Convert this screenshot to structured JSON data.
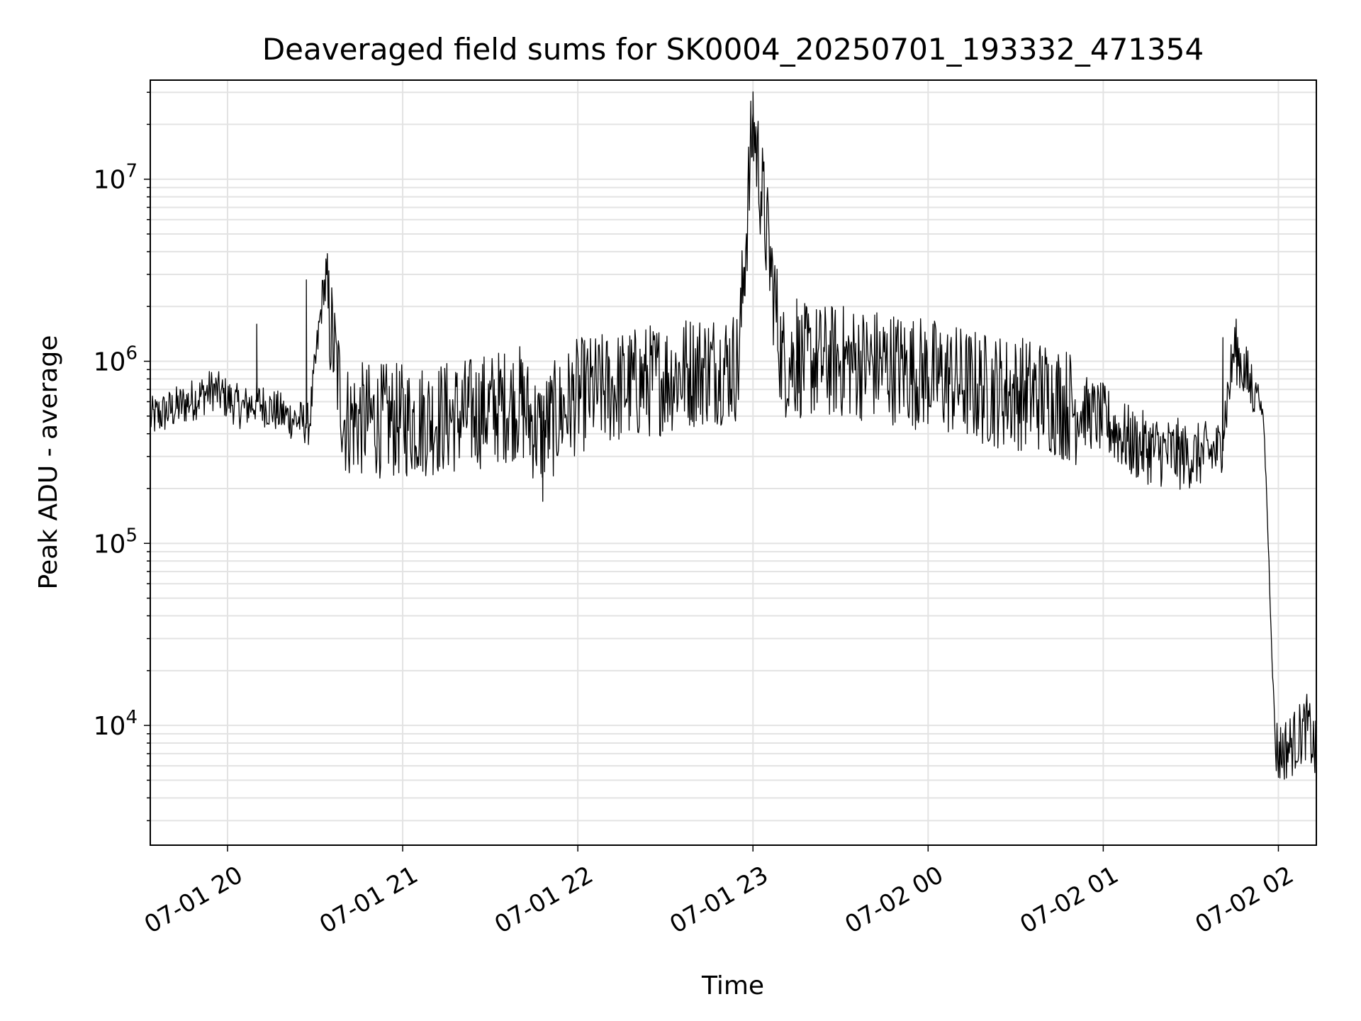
{
  "chart_data": {
    "type": "line",
    "title": "Deaveraged field sums for SK0004_20250701_193332_471354",
    "xlabel": "Time",
    "ylabel": "Peak ADU - average",
    "yscale": "log",
    "ylim": [
      2200,
      35000000
    ],
    "xlim": [
      "2025-07-01 19:33:32",
      "2025-07-02 02:13:00"
    ],
    "grid": true,
    "legend": "none",
    "line_color": "#000000",
    "x_ticks": [
      {
        "t": "2025-07-01 20:00",
        "label": "07-01 20"
      },
      {
        "t": "2025-07-01 21:00",
        "label": "07-01 21"
      },
      {
        "t": "2025-07-01 22:00",
        "label": "07-01 22"
      },
      {
        "t": "2025-07-01 23:00",
        "label": "07-01 23"
      },
      {
        "t": "2025-07-02 00:00",
        "label": "07-02 00"
      },
      {
        "t": "2025-07-02 01:00",
        "label": "07-02 01"
      },
      {
        "t": "2025-07-02 02:00",
        "label": "07-02 02"
      }
    ],
    "y_ticks": [
      {
        "value": 10000,
        "base": "10",
        "exp": "4"
      },
      {
        "value": 100000,
        "base": "10",
        "exp": "5"
      },
      {
        "value": 1000000,
        "base": "10",
        "exp": "6"
      },
      {
        "value": 10000000,
        "base": "10",
        "exp": "7"
      }
    ],
    "series": [
      {
        "x": [
          "2025-07-01 19:33",
          "2025-07-01 19:45",
          "2025-07-01 19:55",
          "2025-07-01 20:05",
          "2025-07-01 20:10",
          "2025-07-01 20:20",
          "2025-07-01 20:28",
          "2025-07-01 20:33",
          "2025-07-01 20:40",
          "2025-07-01 21:00",
          "2025-07-01 21:20",
          "2025-07-01 21:40",
          "2025-07-01 21:47",
          "2025-07-01 22:00",
          "2025-07-01 22:20",
          "2025-07-01 22:40",
          "2025-07-01 22:55",
          "2025-07-01 23:00",
          "2025-07-01 23:10",
          "2025-07-01 23:30",
          "2025-07-01 23:45",
          "2025-07-02 00:00",
          "2025-07-02 00:20",
          "2025-07-02 00:40",
          "2025-07-02 01:00",
          "2025-07-02 01:10",
          "2025-07-02 01:20",
          "2025-07-02 01:30",
          "2025-07-02 01:40",
          "2025-07-02 01:45",
          "2025-07-02 01:50",
          "2025-07-02 01:53",
          "2025-07-02 01:55",
          "2025-07-02 01:56",
          "2025-07-02 01:57",
          "2025-07-02 01:58",
          "2025-07-02 01:59",
          "2025-07-02 02:00",
          "2025-07-02 02:05",
          "2025-07-02 02:10",
          "2025-07-02 02:13"
        ],
        "y": [
          480000,
          580000,
          700000,
          550000,
          600000,
          500000,
          450000,
          2700000,
          480000,
          470000,
          500000,
          600000,
          400000,
          650000,
          750000,
          900000,
          950000,
          21000000,
          1000000,
          1000000,
          950000,
          850000,
          700000,
          650000,
          480000,
          350000,
          320000,
          300000,
          320000,
          1200000,
          750000,
          700000,
          450000,
          180000,
          60000,
          20000,
          8000,
          7000,
          8000,
          10000,
          6800
        ],
        "spikes": [
          {
            "t": "2025-07-01 20:27",
            "y": 2800000
          },
          {
            "t": "2025-07-01 20:10",
            "y": 1600000
          },
          {
            "t": "2025-07-01 21:48",
            "y": 170000
          },
          {
            "t": "2025-07-01 22:57",
            "y": 2300000
          },
          {
            "t": "2025-07-01 23:00",
            "y": 23000000
          },
          {
            "t": "2025-07-01 23:15",
            "y": 2200000
          },
          {
            "t": "2025-07-02 01:41",
            "y": 1350000
          }
        ]
      }
    ]
  }
}
